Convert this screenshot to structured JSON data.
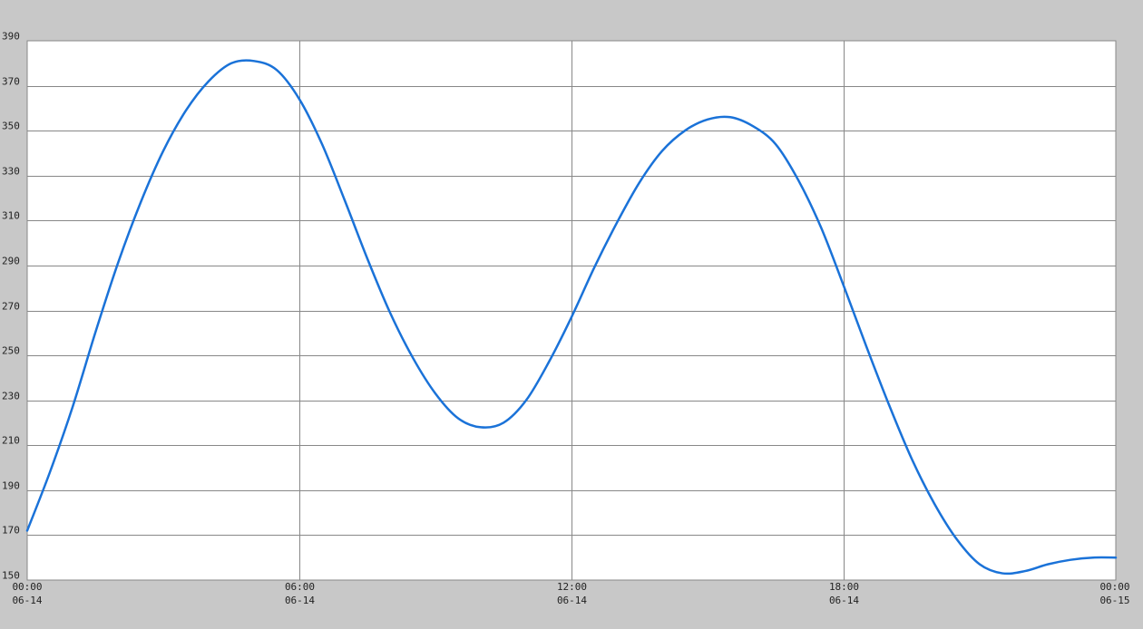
{
  "chart_data": {
    "type": "line",
    "title": "",
    "xlabel": "",
    "ylabel": "",
    "ylim": [
      150,
      390
    ],
    "y_ticks": [
      150,
      170,
      190,
      210,
      230,
      250,
      270,
      290,
      310,
      330,
      350,
      370,
      390
    ],
    "xlim_hours": [
      0,
      24
    ],
    "x_ticks": [
      {
        "hour": 0,
        "time": "00:00",
        "date": "06-14"
      },
      {
        "hour": 6,
        "time": "06:00",
        "date": "06-14"
      },
      {
        "hour": 12,
        "time": "12:00",
        "date": "06-14"
      },
      {
        "hour": 18,
        "time": "18:00",
        "date": "06-14"
      },
      {
        "hour": 24,
        "time": "00:00",
        "date": "06-15"
      }
    ],
    "grid": true,
    "legend": "none",
    "colors": {
      "background": "#c8c8c8",
      "plot_background": "#ffffff",
      "grid": "#888888",
      "line": "#1a72d8"
    },
    "series": [
      {
        "x_hours": [
          0,
          0.5,
          1,
          1.5,
          2,
          2.5,
          3,
          3.5,
          4,
          4.5,
          5,
          5.5,
          6,
          6.5,
          7,
          7.5,
          8,
          8.5,
          9,
          9.5,
          10,
          10.5,
          11,
          11.5,
          12,
          12.5,
          13,
          13.5,
          14,
          14.5,
          15,
          15.5,
          16,
          16.5,
          17,
          17.5,
          18,
          18.5,
          19,
          19.5,
          20,
          20.5,
          21,
          21.5,
          22,
          22.5,
          23,
          23.5,
          24
        ],
        "values": [
          172,
          198,
          227,
          260,
          291,
          318,
          341,
          359,
          372,
          380,
          381,
          377,
          364,
          344,
          319,
          293,
          269,
          249,
          233,
          222,
          218,
          220,
          230,
          247,
          267,
          289,
          309,
          327,
          341,
          350,
          355,
          356,
          352,
          344,
          328,
          307,
          281,
          254,
          228,
          204,
          184,
          168,
          157,
          153,
          154,
          157,
          159,
          160,
          160
        ]
      }
    ]
  }
}
